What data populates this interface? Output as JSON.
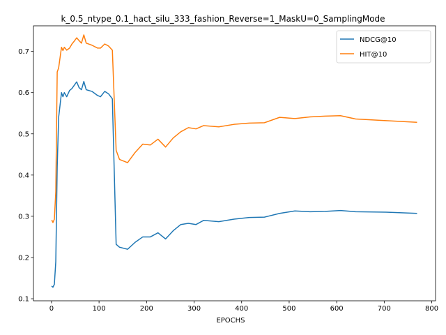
{
  "chart_data": {
    "type": "line",
    "title": "k_0.5_ntype_0.1_hact_silu_333_fashion_Reverse=1_MaskU=0_SamplingMode",
    "xlabel": "EPOCHS",
    "ylabel": "",
    "xlim": [
      -38,
      808
    ],
    "ylim": [
      0.095,
      0.762
    ],
    "xticks": [
      0,
      100,
      200,
      300,
      400,
      500,
      600,
      700,
      800
    ],
    "yticks": [
      0.1,
      0.2,
      0.3,
      0.4,
      0.5,
      0.6,
      0.7
    ],
    "xtick_labels": [
      "0",
      "100",
      "200",
      "300",
      "400",
      "500",
      "600",
      "700",
      "800"
    ],
    "ytick_labels": [
      "0.1",
      "0.2",
      "0.3",
      "0.4",
      "0.5",
      "0.6",
      "0.7"
    ],
    "grid": false,
    "legend_position": "top-right",
    "series": [
      {
        "name": "NDCG@10",
        "color": "#1f77b4",
        "points": [
          [
            1,
            0.13
          ],
          [
            3,
            0.128
          ],
          [
            6,
            0.135
          ],
          [
            9,
            0.19
          ],
          [
            12,
            0.42
          ],
          [
            15,
            0.54
          ],
          [
            18,
            0.57
          ],
          [
            21,
            0.6
          ],
          [
            24,
            0.59
          ],
          [
            27,
            0.6
          ],
          [
            32,
            0.59
          ],
          [
            38,
            0.605
          ],
          [
            43,
            0.61
          ],
          [
            48,
            0.618
          ],
          [
            53,
            0.626
          ],
          [
            58,
            0.612
          ],
          [
            63,
            0.607
          ],
          [
            68,
            0.627
          ],
          [
            73,
            0.607
          ],
          [
            85,
            0.603
          ],
          [
            97,
            0.593
          ],
          [
            103,
            0.59
          ],
          [
            112,
            0.603
          ],
          [
            120,
            0.597
          ],
          [
            128,
            0.585
          ],
          [
            136,
            0.232
          ],
          [
            143,
            0.225
          ],
          [
            160,
            0.22
          ],
          [
            176,
            0.237
          ],
          [
            192,
            0.25
          ],
          [
            208,
            0.25
          ],
          [
            224,
            0.26
          ],
          [
            240,
            0.245
          ],
          [
            256,
            0.265
          ],
          [
            272,
            0.28
          ],
          [
            288,
            0.283
          ],
          [
            304,
            0.28
          ],
          [
            320,
            0.29
          ],
          [
            352,
            0.287
          ],
          [
            384,
            0.293
          ],
          [
            416,
            0.297
          ],
          [
            448,
            0.298
          ],
          [
            480,
            0.307
          ],
          [
            512,
            0.313
          ],
          [
            544,
            0.311
          ],
          [
            576,
            0.312
          ],
          [
            608,
            0.314
          ],
          [
            640,
            0.311
          ],
          [
            704,
            0.31
          ],
          [
            768,
            0.307
          ]
        ]
      },
      {
        "name": "HIT@10",
        "color": "#ff7f0e",
        "points": [
          [
            1,
            0.29
          ],
          [
            3,
            0.285
          ],
          [
            6,
            0.293
          ],
          [
            9,
            0.36
          ],
          [
            12,
            0.65
          ],
          [
            15,
            0.66
          ],
          [
            18,
            0.685
          ],
          [
            21,
            0.71
          ],
          [
            24,
            0.702
          ],
          [
            27,
            0.71
          ],
          [
            32,
            0.703
          ],
          [
            38,
            0.708
          ],
          [
            43,
            0.718
          ],
          [
            48,
            0.725
          ],
          [
            53,
            0.733
          ],
          [
            58,
            0.726
          ],
          [
            63,
            0.72
          ],
          [
            68,
            0.74
          ],
          [
            73,
            0.72
          ],
          [
            85,
            0.715
          ],
          [
            97,
            0.708
          ],
          [
            103,
            0.708
          ],
          [
            112,
            0.718
          ],
          [
            120,
            0.713
          ],
          [
            128,
            0.703
          ],
          [
            136,
            0.46
          ],
          [
            143,
            0.438
          ],
          [
            160,
            0.43
          ],
          [
            176,
            0.455
          ],
          [
            192,
            0.475
          ],
          [
            208,
            0.473
          ],
          [
            224,
            0.487
          ],
          [
            240,
            0.468
          ],
          [
            256,
            0.49
          ],
          [
            272,
            0.505
          ],
          [
            288,
            0.515
          ],
          [
            304,
            0.512
          ],
          [
            320,
            0.52
          ],
          [
            352,
            0.517
          ],
          [
            384,
            0.523
          ],
          [
            416,
            0.526
          ],
          [
            448,
            0.527
          ],
          [
            480,
            0.54
          ],
          [
            512,
            0.537
          ],
          [
            544,
            0.541
          ],
          [
            576,
            0.543
          ],
          [
            608,
            0.544
          ],
          [
            640,
            0.536
          ],
          [
            704,
            0.532
          ],
          [
            768,
            0.528
          ]
        ]
      }
    ]
  }
}
